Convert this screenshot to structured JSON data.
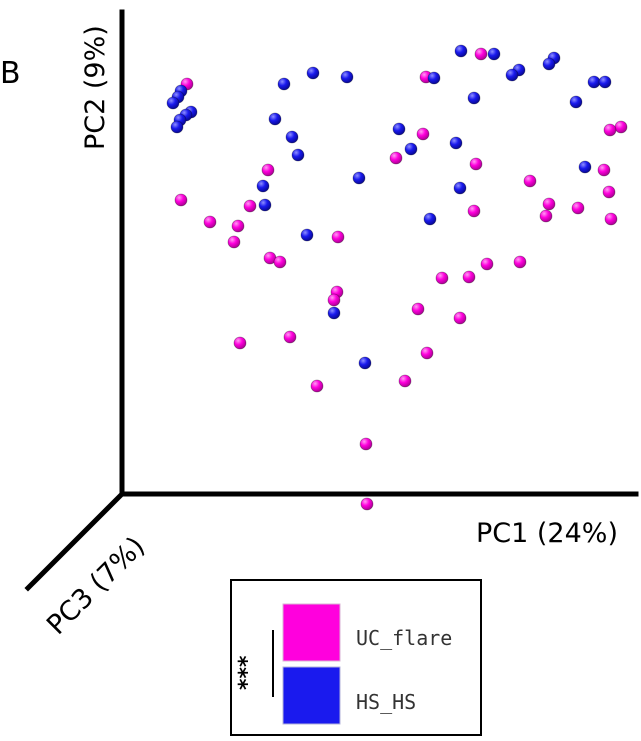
{
  "chart_data": {
    "type": "scatter",
    "panel_label": "B",
    "axes": {
      "x": "PC1 (24%)",
      "y": "PC2 (9%)",
      "z": "PC3 (7%)"
    },
    "colors": {
      "UC_flare": "#ff00dd",
      "HS_HS": "#1a1aee"
    },
    "series": [
      {
        "name": "UC_flare",
        "points": [
          [
            187,
            84
          ],
          [
            181,
            200
          ],
          [
            210,
            222
          ],
          [
            238,
            226
          ],
          [
            234,
            242
          ],
          [
            250,
            206
          ],
          [
            268,
            170
          ],
          [
            270,
            258
          ],
          [
            280,
            262
          ],
          [
            338,
            237
          ],
          [
            337,
            292
          ],
          [
            334,
            300
          ],
          [
            290,
            337
          ],
          [
            240,
            343
          ],
          [
            317,
            386
          ],
          [
            366,
            444
          ],
          [
            367,
            504
          ],
          [
            405,
            381
          ],
          [
            427,
            353
          ],
          [
            418,
            309
          ],
          [
            442,
            278
          ],
          [
            460,
            318
          ],
          [
            469,
            277
          ],
          [
            487,
            264
          ],
          [
            520,
            262
          ],
          [
            474,
            211
          ],
          [
            476,
            164
          ],
          [
            423,
            134
          ],
          [
            396,
            158
          ],
          [
            426,
            77
          ],
          [
            481,
            54
          ],
          [
            530,
            181
          ],
          [
            546,
            216
          ],
          [
            549,
            204
          ],
          [
            578,
            208
          ],
          [
            604,
            170
          ],
          [
            609,
            192
          ],
          [
            611,
            219
          ],
          [
            610,
            130
          ],
          [
            621,
            127
          ]
        ]
      },
      {
        "name": "HS_HS",
        "points": [
          [
            181,
            91
          ],
          [
            178,
            97
          ],
          [
            173,
            103
          ],
          [
            180,
            120
          ],
          [
            186,
            115
          ],
          [
            191,
            112
          ],
          [
            177,
            127
          ],
          [
            275,
            119
          ],
          [
            284,
            84
          ],
          [
            313,
            73
          ],
          [
            347,
            77
          ],
          [
            292,
            137
          ],
          [
            298,
            155
          ],
          [
            263,
            186
          ],
          [
            265,
            205
          ],
          [
            307,
            235
          ],
          [
            359,
            178
          ],
          [
            334,
            313
          ],
          [
            365,
            363
          ],
          [
            399,
            129
          ],
          [
            411,
            149
          ],
          [
            434,
            78
          ],
          [
            474,
            98
          ],
          [
            456,
            143
          ],
          [
            460,
            188
          ],
          [
            430,
            219
          ],
          [
            461,
            51
          ],
          [
            494,
            54
          ],
          [
            512,
            75
          ],
          [
            519,
            70
          ],
          [
            549,
            64
          ],
          [
            554,
            58
          ],
          [
            576,
            102
          ],
          [
            594,
            82
          ],
          [
            605,
            82
          ],
          [
            585,
            167
          ]
        ]
      }
    ],
    "legend": {
      "position": "bottom-center",
      "entries": [
        {
          "label": "UC_flare",
          "color": "#ff00dd"
        },
        {
          "label": "HS_HS",
          "color": "#1a1aee"
        }
      ],
      "significance": "***"
    }
  }
}
